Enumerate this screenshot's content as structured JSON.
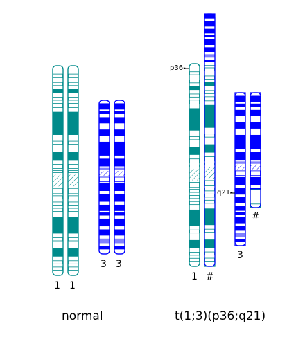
{
  "colors": {
    "chr1": "#008b8b",
    "chr3": "#0000ff",
    "chr3_light": "#8080ff",
    "background": "#ffffff"
  },
  "groups": {
    "normal": {
      "caption": "normal",
      "labels": [
        "1",
        "1",
        "3",
        "3"
      ]
    },
    "translocation": {
      "caption": "t(1;3)(p36;q21)",
      "labels": [
        "1",
        "#",
        "3",
        "#"
      ],
      "breakpoints": [
        "p36-",
        "q21-"
      ]
    }
  }
}
